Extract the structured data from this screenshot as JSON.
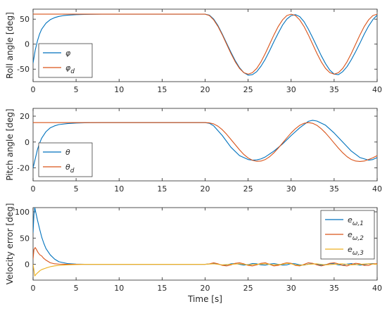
{
  "chart_data": [
    {
      "type": "line",
      "ylabel": "Roll angle [deg]",
      "xlabel": "",
      "xlim": [
        0,
        40
      ],
      "ylim": [
        -75,
        70
      ],
      "xticks": [
        0,
        5,
        10,
        15,
        20,
        25,
        30,
        35,
        40
      ],
      "yticks": [
        -50,
        0,
        50
      ],
      "legend_position": "bottom-left",
      "series": [
        {
          "name": "φ",
          "color": "#0072BD",
          "x": [
            0,
            0.25,
            0.5,
            0.75,
            1,
            1.5,
            2,
            2.5,
            3,
            3.5,
            4,
            5,
            6,
            8,
            10,
            15,
            20,
            20.5,
            21,
            21.5,
            22,
            22.5,
            23,
            23.5,
            24,
            24.5,
            25,
            25.5,
            26,
            26.5,
            27,
            27.5,
            28,
            28.5,
            29,
            29.5,
            30,
            30.5,
            31,
            31.5,
            32,
            32.5,
            33,
            33.5,
            34,
            34.5,
            35,
            35.5,
            36,
            36.5,
            37,
            37.5,
            38,
            38.5,
            39,
            39.5,
            40
          ],
          "y": [
            -38,
            -12,
            6,
            20,
            30,
            42,
            49,
            53,
            55.5,
            57,
            58,
            59,
            59.5,
            60,
            60,
            60,
            60,
            58,
            50,
            37,
            20,
            2,
            -16,
            -33,
            -47,
            -57,
            -62,
            -61,
            -55,
            -44,
            -30,
            -13,
            5,
            22,
            38,
            50,
            57,
            59,
            55,
            45,
            30,
            13,
            -5,
            -23,
            -39,
            -52,
            -60,
            -61,
            -55,
            -45,
            -31,
            -15,
            2,
            20,
            36,
            49,
            58
          ]
        },
        {
          "name": "φ_d",
          "color": "#D95319",
          "x": [
            0,
            5,
            10,
            15,
            20,
            20.5,
            21,
            21.5,
            22,
            22.5,
            23,
            23.5,
            24,
            24.5,
            25,
            25.5,
            26,
            26.5,
            27,
            27.5,
            28,
            28.5,
            29,
            29.5,
            30,
            30.5,
            31,
            31.5,
            32,
            32.5,
            33,
            33.5,
            34,
            34.5,
            35,
            35.5,
            36,
            36.5,
            37,
            37.5,
            38,
            38.5,
            39,
            39.5,
            40
          ],
          "y": [
            60,
            60,
            60,
            60,
            60,
            57.1,
            48.5,
            35.3,
            18.5,
            0,
            -18.5,
            -35.3,
            -48.5,
            -57.1,
            -60,
            -57.1,
            -48.5,
            -35.3,
            -18.5,
            0,
            18.5,
            35.3,
            48.5,
            57.1,
            60,
            57.1,
            48.5,
            35.3,
            18.5,
            0,
            -18.5,
            -35.3,
            -48.5,
            -57.1,
            -60,
            -57.1,
            -48.5,
            -35.3,
            -18.5,
            0,
            18.5,
            35.3,
            48.5,
            57.1,
            60
          ]
        }
      ]
    },
    {
      "type": "line",
      "ylabel": "Pitch angle [deg]",
      "xlabel": "",
      "xlim": [
        0,
        40
      ],
      "ylim": [
        -30,
        26
      ],
      "xticks": [
        0,
        5,
        10,
        15,
        20,
        25,
        30,
        35,
        40
      ],
      "yticks": [
        -20,
        0,
        20
      ],
      "legend_position": "bottom-left",
      "series": [
        {
          "name": "θ",
          "color": "#0072BD",
          "x": [
            0,
            0.25,
            0.5,
            0.75,
            1,
            1.5,
            2,
            2.5,
            3,
            4,
            5,
            6,
            8,
            10,
            15,
            20,
            20.5,
            21,
            22,
            23,
            24,
            25,
            25.5,
            26,
            26.5,
            27,
            28,
            29,
            30,
            31,
            32,
            32.5,
            33,
            34,
            35,
            36,
            37,
            38,
            39,
            39.5,
            40
          ],
          "y": [
            -20,
            -13,
            -6,
            -1,
            3,
            8,
            11,
            12.5,
            13.5,
            14.3,
            14.7,
            14.9,
            15,
            15,
            15,
            15,
            14.5,
            12.5,
            5,
            -4,
            -10.5,
            -13.5,
            -14,
            -13.8,
            -13,
            -11.5,
            -7,
            -1.5,
            5,
            11,
            16,
            16.8,
            16.2,
            13,
            7,
            0,
            -7,
            -12,
            -14,
            -13.5,
            -12
          ]
        },
        {
          "name": "θ_d",
          "color": "#D95319",
          "x": [
            0,
            5,
            10,
            15,
            20,
            20.5,
            21,
            21.5,
            22,
            22.5,
            23,
            23.5,
            24,
            24.5,
            25,
            25.5,
            26,
            26.5,
            27,
            27.5,
            28,
            28.5,
            29,
            29.5,
            30,
            30.5,
            31,
            31.5,
            32,
            32.5,
            33,
            33.5,
            34,
            34.5,
            35,
            35.5,
            36,
            36.5,
            37,
            37.5,
            38,
            38.5,
            39,
            39.5,
            40
          ],
          "y": [
            15,
            15,
            15,
            15,
            15,
            14.8,
            14,
            12.2,
            9.5,
            6,
            2,
            -2,
            -6,
            -9.6,
            -12.3,
            -14.1,
            -14.9,
            -14.7,
            -13.5,
            -11.3,
            -8.3,
            -4.7,
            -0.8,
            3.2,
            7,
            10.3,
            12.9,
            14.5,
            15,
            14.5,
            12.9,
            10.3,
            7,
            3.2,
            -0.8,
            -4.7,
            -8.3,
            -11.3,
            -13.5,
            -14.7,
            -15,
            -14.7,
            -13.5,
            -12.2,
            -10.5
          ]
        }
      ]
    },
    {
      "type": "line",
      "ylabel": "Velocity error [deg]",
      "xlabel": "Time [s]",
      "xlim": [
        0,
        40
      ],
      "ylim": [
        -30,
        108
      ],
      "xticks": [
        0,
        5,
        10,
        15,
        20,
        25,
        30,
        35,
        40
      ],
      "yticks": [
        0,
        50,
        100
      ],
      "legend_position": "top-right",
      "series": [
        {
          "name": "e_ω,1",
          "color": "#0072BD",
          "x": [
            0,
            0.1,
            0.2,
            0.3,
            0.5,
            0.75,
            1,
            1.25,
            1.5,
            2,
            2.5,
            3,
            4,
            5,
            6,
            8,
            20,
            21,
            21.5,
            22,
            22.5,
            23,
            23.5,
            24,
            24.5,
            25,
            25.5,
            26,
            26.5,
            27,
            27.5,
            28,
            28.5,
            29,
            29.5,
            30,
            30.5,
            31,
            31.5,
            32,
            32.5,
            33,
            33.5,
            34,
            34.5,
            35,
            35.5,
            36,
            36.5,
            37,
            37.5,
            38,
            38.5,
            39,
            39.5,
            40
          ],
          "y": [
            60,
            95,
            108,
            100,
            85,
            68,
            52,
            40,
            30,
            18,
            10,
            5,
            1.5,
            0.5,
            0,
            0,
            0,
            1.5,
            0.5,
            -1.5,
            -1,
            1,
            1.5,
            0,
            -1.5,
            -0.5,
            1.5,
            1,
            -1,
            -1.5,
            0.5,
            1.5,
            0,
            -1.5,
            -1,
            1.5,
            1,
            -1,
            -1.5,
            0.5,
            1.5,
            0,
            -1.5,
            -0.5,
            1.5,
            1,
            -1,
            -1.5,
            0.5,
            1.5,
            0,
            -1.5,
            -0.5,
            1,
            1.5,
            0
          ]
        },
        {
          "name": "e_ω,2",
          "color": "#D95319",
          "x": [
            0,
            0.1,
            0.25,
            0.4,
            0.6,
            0.8,
            1,
            1.2,
            1.5,
            2,
            2.5,
            3,
            4,
            5,
            20,
            20.5,
            21,
            21.5,
            22,
            22.5,
            23,
            23.5,
            24,
            24.5,
            25,
            25.5,
            26,
            26.5,
            27,
            27.5,
            28,
            28.5,
            29,
            29.5,
            30,
            30.5,
            31,
            31.5,
            32,
            32.5,
            33,
            33.5,
            34,
            34.5,
            35,
            35.5,
            36,
            36.5,
            37,
            37.5,
            38,
            38.5,
            39,
            39.5,
            40
          ],
          "y": [
            10,
            28,
            32,
            28,
            22,
            18,
            16,
            12,
            8,
            3,
            1,
            0.5,
            0,
            0,
            0,
            1,
            3,
            1,
            -2,
            -3,
            -1,
            2,
            3,
            1,
            -2,
            -3,
            -1,
            2,
            3,
            0,
            -3,
            -2,
            1,
            3,
            2,
            -2,
            -3,
            0,
            3,
            2,
            -1,
            -3,
            -1,
            2,
            3,
            1,
            -2,
            -3,
            0,
            2,
            1,
            -2,
            -2,
            1,
            1
          ]
        },
        {
          "name": "e_ω,3",
          "color": "#EDB120",
          "x": [
            0,
            0.2,
            0.4,
            0.6,
            0.8,
            1,
            1.5,
            2,
            2.5,
            3,
            4,
            5,
            6,
            20,
            21,
            22,
            23,
            24,
            25,
            26,
            27,
            28,
            29,
            29.5,
            30,
            30.5,
            31,
            32,
            33,
            34,
            35,
            36,
            37,
            38,
            39,
            40
          ],
          "y": [
            0,
            -22,
            -18,
            -15,
            -12,
            -10,
            -7,
            -4.5,
            -3,
            -2,
            -1,
            -0.5,
            0,
            0,
            1,
            -1,
            0,
            1,
            -1,
            0,
            1,
            -1,
            0,
            2,
            1,
            -1,
            -2,
            0,
            1,
            -1,
            0,
            1,
            -1,
            0,
            1,
            0
          ]
        }
      ]
    }
  ]
}
